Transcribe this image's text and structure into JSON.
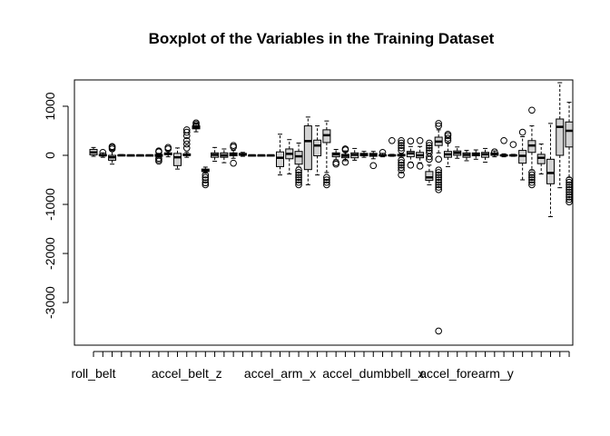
{
  "chart_data": {
    "type": "boxplot",
    "title": "Boxplot of the Variables in the Training Dataset",
    "xlabel": "",
    "ylabel": "",
    "ylim": [
      -3800,
      1750
    ],
    "y_ticks": [
      1000,
      0,
      -1000,
      -2000,
      -3000
    ],
    "y_tick_labels": [
      "1000",
      "0",
      "-1000",
      "-2000",
      "-3000"
    ],
    "x_tick_labels": [
      {
        "index": 0,
        "label": "roll_belt"
      },
      {
        "index": 10,
        "label": "accel_belt_z"
      },
      {
        "index": 20,
        "label": "accel_arm_x"
      },
      {
        "index": 30,
        "label": "accel_dumbbell_x"
      },
      {
        "index": 40,
        "label": "accel_forearm_y"
      }
    ],
    "box_fill": "#d3d3d3",
    "boxes": [
      {
        "q1": 10,
        "med": 60,
        "q3": 120,
        "wlo": -20,
        "whi": 160,
        "out": []
      },
      {
        "q1": -10,
        "med": 0,
        "q3": 20,
        "wlo": -40,
        "whi": 50,
        "out": [
          60
        ]
      },
      {
        "q1": -100,
        "med": -40,
        "q3": 0,
        "wlo": -180,
        "whi": 90,
        "out": [
          130,
          160,
          180
        ]
      },
      {
        "q1": 0,
        "med": 0,
        "q3": 10,
        "wlo": -5,
        "whi": 15,
        "out": []
      },
      {
        "q1": -5,
        "med": 0,
        "q3": 5,
        "wlo": -10,
        "whi": 10,
        "out": []
      },
      {
        "q1": -5,
        "med": 0,
        "q3": 5,
        "wlo": -10,
        "whi": 10,
        "out": []
      },
      {
        "q1": -5,
        "med": 0,
        "q3": 5,
        "wlo": -10,
        "whi": 10,
        "out": []
      },
      {
        "q1": -20,
        "med": 0,
        "q3": 20,
        "wlo": -40,
        "whi": 40,
        "out": [
          -60,
          -90,
          -120,
          70,
          90
        ]
      },
      {
        "q1": 10,
        "med": 30,
        "q3": 50,
        "wlo": -30,
        "whi": 90,
        "out": [
          130,
          160
        ]
      },
      {
        "q1": -210,
        "med": -40,
        "q3": 40,
        "wlo": -280,
        "whi": 150,
        "out": []
      },
      {
        "q1": -5,
        "med": 10,
        "q3": 30,
        "wlo": -40,
        "whi": 60,
        "out": [
          150,
          230,
          300,
          400,
          470,
          520
        ]
      },
      {
        "q1": 540,
        "med": 570,
        "q3": 600,
        "wlo": 480,
        "whi": 640,
        "out": [
          600,
          630,
          660
        ]
      },
      {
        "q1": -330,
        "med": -310,
        "q3": -280,
        "wlo": -360,
        "whi": -240,
        "out": [
          -400,
          -450,
          -500,
          -560,
          -600
        ]
      },
      {
        "q1": -40,
        "med": 10,
        "q3": 50,
        "wlo": -120,
        "whi": 160,
        "out": []
      },
      {
        "q1": -40,
        "med": 0,
        "q3": 50,
        "wlo": -150,
        "whi": 130,
        "out": []
      },
      {
        "q1": -10,
        "med": 20,
        "q3": 50,
        "wlo": -60,
        "whi": 100,
        "out": [
          -160,
          170,
          200
        ]
      },
      {
        "q1": 0,
        "med": 20,
        "q3": 40,
        "wlo": -20,
        "whi": 60,
        "out": []
      },
      {
        "q1": -5,
        "med": 0,
        "q3": 5,
        "wlo": -10,
        "whi": 10,
        "out": []
      },
      {
        "q1": -5,
        "med": 0,
        "q3": 5,
        "wlo": -10,
        "whi": 10,
        "out": []
      },
      {
        "q1": -5,
        "med": 0,
        "q3": 5,
        "wlo": -10,
        "whi": 10,
        "out": []
      },
      {
        "q1": -230,
        "med": -50,
        "q3": 70,
        "wlo": -400,
        "whi": 430,
        "out": []
      },
      {
        "q1": -70,
        "med": 30,
        "q3": 130,
        "wlo": -380,
        "whi": 320,
        "out": []
      },
      {
        "q1": -180,
        "med": -20,
        "q3": 80,
        "wlo": -240,
        "whi": 250,
        "out": [
          -300,
          -350,
          -400,
          -450,
          -500,
          -550,
          -600
        ]
      },
      {
        "q1": -290,
        "med": 290,
        "q3": 600,
        "wlo": -600,
        "whi": 780,
        "out": []
      },
      {
        "q1": -10,
        "med": 200,
        "q3": 310,
        "wlo": -400,
        "whi": 600,
        "out": []
      },
      {
        "q1": 260,
        "med": 410,
        "q3": 520,
        "wlo": -350,
        "whi": 700,
        "out": [
          -450,
          -500,
          -550,
          -600
        ]
      },
      {
        "q1": -30,
        "med": 20,
        "q3": 50,
        "wlo": -90,
        "whi": 120,
        "out": [
          -150,
          -180
        ]
      },
      {
        "q1": -50,
        "med": -10,
        "q3": 20,
        "wlo": -110,
        "whi": 90,
        "out": [
          -140,
          110,
          130
        ]
      },
      {
        "q1": -50,
        "med": 10,
        "q3": 50,
        "wlo": -100,
        "whi": 140,
        "out": []
      },
      {
        "q1": -10,
        "med": 20,
        "q3": 40,
        "wlo": -40,
        "whi": 80,
        "out": []
      },
      {
        "q1": -20,
        "med": 10,
        "q3": 40,
        "wlo": -70,
        "whi": 80,
        "out": [
          -210
        ]
      },
      {
        "q1": -10,
        "med": 0,
        "q3": 10,
        "wlo": -30,
        "whi": 40,
        "out": [
          60
        ]
      },
      {
        "q1": -10,
        "med": 0,
        "q3": 10,
        "wlo": -20,
        "whi": 20,
        "out": [
          300
        ]
      },
      {
        "q1": -10,
        "med": 0,
        "q3": 20,
        "wlo": -40,
        "whi": 40,
        "out": [
          -100,
          -150,
          -200,
          -250,
          -300,
          -400,
          100,
          150,
          200,
          250,
          300
        ]
      },
      {
        "q1": -30,
        "med": 40,
        "q3": 80,
        "wlo": -140,
        "whi": 180,
        "out": [
          -200,
          290
        ]
      },
      {
        "q1": -50,
        "med": 0,
        "q3": 60,
        "wlo": -150,
        "whi": 180,
        "out": [
          300,
          -220
        ]
      },
      {
        "q1": -510,
        "med": -450,
        "q3": -330,
        "wlo": -600,
        "whi": -200,
        "out": [
          -80,
          -30,
          50,
          100,
          150,
          200,
          250
        ]
      },
      {
        "q1": 200,
        "med": 280,
        "q3": 370,
        "wlo": 50,
        "whi": 520,
        "out": [
          -80,
          -300,
          -350,
          -400,
          -450,
          -500,
          -550,
          -600,
          -650,
          -700,
          600,
          650,
          -3580
        ]
      },
      {
        "q1": -40,
        "med": 20,
        "q3": 80,
        "wlo": -230,
        "whi": 260,
        "out": [
          300,
          350,
          400,
          430
        ]
      },
      {
        "q1": 0,
        "med": 50,
        "q3": 90,
        "wlo": -60,
        "whi": 170,
        "out": []
      },
      {
        "q1": -40,
        "med": 10,
        "q3": 50,
        "wlo": -110,
        "whi": 100,
        "out": []
      },
      {
        "q1": -10,
        "med": 20,
        "q3": 50,
        "wlo": -80,
        "whi": 110,
        "out": []
      },
      {
        "q1": -40,
        "med": 20,
        "q3": 60,
        "wlo": -140,
        "whi": 140,
        "out": []
      },
      {
        "q1": 0,
        "med": 20,
        "q3": 50,
        "wlo": -30,
        "whi": 90,
        "out": [
          70
        ]
      },
      {
        "q1": -10,
        "med": 0,
        "q3": 10,
        "wlo": -30,
        "whi": 30,
        "out": [
          300
        ]
      },
      {
        "q1": -10,
        "med": 0,
        "q3": 10,
        "wlo": -20,
        "whi": 20,
        "out": [
          220
        ]
      },
      {
        "q1": -160,
        "med": -10,
        "q3": 100,
        "wlo": -500,
        "whi": 380,
        "out": [
          470
        ]
      },
      {
        "q1": 60,
        "med": 200,
        "q3": 300,
        "wlo": -300,
        "whi": 600,
        "out": [
          -350,
          -400,
          -450,
          -500,
          -550,
          -600,
          920
        ]
      },
      {
        "q1": -170,
        "med": -50,
        "q3": 20,
        "wlo": -380,
        "whi": 230,
        "out": []
      },
      {
        "q1": -580,
        "med": -360,
        "q3": -80,
        "wlo": -1250,
        "whi": 650,
        "out": []
      },
      {
        "q1": 0,
        "med": 580,
        "q3": 740,
        "wlo": -660,
        "whi": 1480,
        "out": []
      },
      {
        "q1": 170,
        "med": 500,
        "q3": 680,
        "wlo": -450,
        "whi": 1080,
        "out": [
          -500,
          -550,
          -600,
          -650,
          -700,
          -750,
          -800,
          -850,
          -900,
          -950
        ]
      }
    ]
  }
}
